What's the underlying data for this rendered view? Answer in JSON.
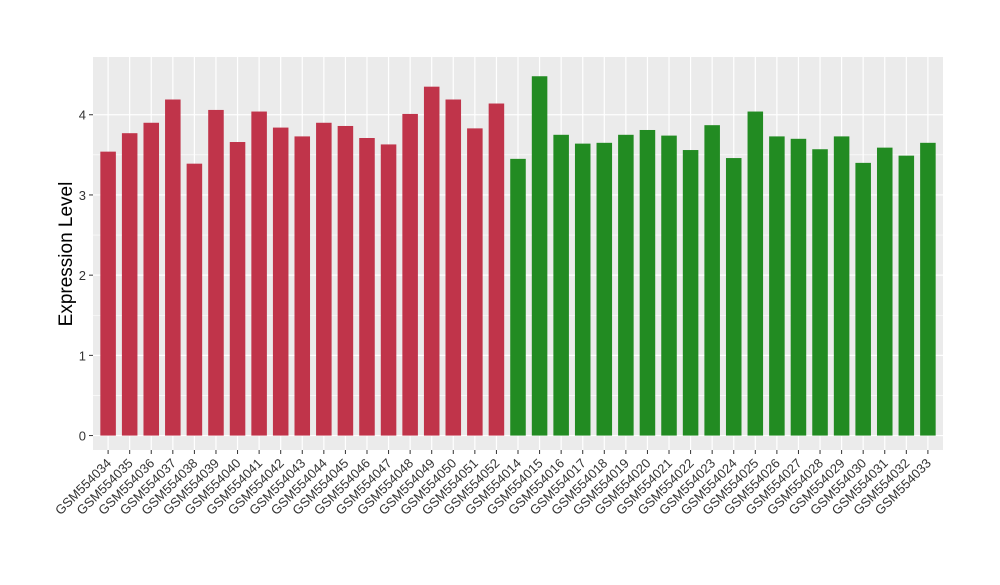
{
  "chart_data": {
    "type": "bar",
    "title": "",
    "xlabel": "",
    "ylabel": "Expression Level",
    "ylim": [
      -0.18,
      4.72
    ],
    "yticks": [
      0,
      1,
      2,
      3,
      4
    ],
    "grid": true,
    "legend": "none",
    "colors": {
      "group_a": "#C0344A",
      "group_b": "#228B22",
      "panel_bg": "#EBEBEB",
      "grid": "#FFFFFF",
      "text": "#333333"
    },
    "categories": [
      "GSM554034",
      "GSM554035",
      "GSM554036",
      "GSM554037",
      "GSM554038",
      "GSM554039",
      "GSM554040",
      "GSM554041",
      "GSM554042",
      "GSM554043",
      "GSM554044",
      "GSM554045",
      "GSM554046",
      "GSM554047",
      "GSM554048",
      "GSM554049",
      "GSM554050",
      "GSM554051",
      "GSM554052",
      "GSM554014",
      "GSM554015",
      "GSM554016",
      "GSM554017",
      "GSM554018",
      "GSM554019",
      "GSM554020",
      "GSM554021",
      "GSM554022",
      "GSM554023",
      "GSM554024",
      "GSM554025",
      "GSM554026",
      "GSM554027",
      "GSM554028",
      "GSM554029",
      "GSM554030",
      "GSM554031",
      "GSM554032",
      "GSM554033"
    ],
    "values": [
      3.54,
      3.77,
      3.9,
      4.19,
      3.39,
      4.06,
      3.66,
      4.04,
      3.84,
      3.73,
      3.9,
      3.86,
      3.71,
      3.63,
      4.01,
      4.35,
      4.19,
      3.83,
      4.14,
      3.45,
      4.48,
      3.75,
      3.64,
      3.65,
      3.75,
      3.81,
      3.74,
      3.56,
      3.87,
      3.46,
      4.04,
      3.73,
      3.7,
      3.57,
      3.73,
      3.4,
      3.59,
      3.49,
      3.65
    ],
    "groups": [
      "a",
      "a",
      "a",
      "a",
      "a",
      "a",
      "a",
      "a",
      "a",
      "a",
      "a",
      "a",
      "a",
      "a",
      "a",
      "a",
      "a",
      "a",
      "a",
      "b",
      "b",
      "b",
      "b",
      "b",
      "b",
      "b",
      "b",
      "b",
      "b",
      "b",
      "b",
      "b",
      "b",
      "b",
      "b",
      "b",
      "b",
      "b",
      "b"
    ]
  }
}
